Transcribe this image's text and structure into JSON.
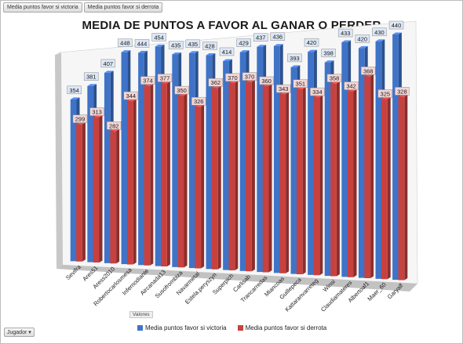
{
  "tabs": [
    "Media puntos favor si victoria",
    "Media puntos favor si derrota"
  ],
  "axis_title": "Valores",
  "filter": {
    "label": "Jugador",
    "icon": "dropdown-arrow-icon"
  },
  "colors": {
    "victoria": "#3f73c8",
    "derrota": "#c7413f"
  },
  "chart_data": {
    "type": "bar",
    "title": "MEDIA DE PUNTOS A FAVOR AL GANAR O PERDER",
    "categories": [
      "Sevifra",
      "Ares51",
      "Aress2010",
      "Robertocarlosmesa",
      "Infernodiante",
      "Aircanada13",
      "Susofrombiza",
      "Navarmetal",
      "Estela.peryszyn",
      "Superpich",
      "Carlisab",
      "Trancarredas",
      "Miancoas",
      "Guillepeca",
      "Kattaranvarreteg",
      "Winsi",
      "Claudiamateres",
      "Albertoaf1",
      "Maer_60",
      "Garyalf"
    ],
    "series": [
      {
        "name": "Media puntos favor si victoria",
        "values": [
          354,
          381,
          407,
          448,
          444,
          454,
          435,
          435,
          428,
          414,
          429,
          437,
          436,
          393,
          420,
          398,
          433,
          420,
          430,
          440
        ]
      },
      {
        "name": "Media puntos favor si derrota",
        "values": [
          299,
          313,
          282,
          344,
          374,
          377,
          350,
          326,
          362,
          370,
          370,
          360,
          343,
          351,
          334,
          358,
          342,
          368,
          325,
          328
        ]
      }
    ],
    "legend_position": "bottom",
    "grid": false
  }
}
